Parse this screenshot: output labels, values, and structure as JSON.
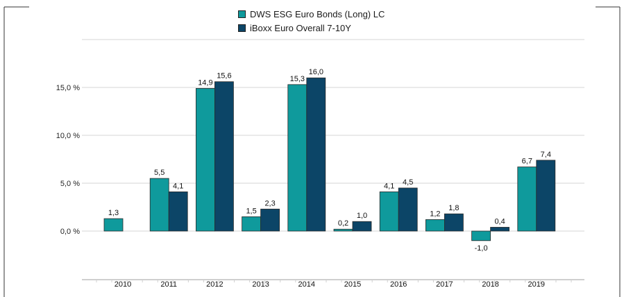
{
  "chart_data": {
    "type": "bar",
    "categories": [
      "2010",
      "2011",
      "2012",
      "2013",
      "2014",
      "2015",
      "2016",
      "2017",
      "2018",
      "2019"
    ],
    "series": [
      {
        "name": "DWS ESG Euro Bonds (Long)  LC",
        "color": "#0f9a9c",
        "values": [
          1.3,
          5.5,
          14.9,
          1.5,
          15.3,
          0.2,
          4.1,
          1.2,
          -1.0,
          6.7
        ],
        "labels": [
          "1,3",
          "5,5",
          "14,9",
          "1,5",
          "15,3",
          "0,2",
          "4,1",
          "1,2",
          "-1,0",
          "6,7"
        ]
      },
      {
        "name": "iBoxx Euro Overall 7-10Y",
        "color": "#0c4567",
        "values": [
          null,
          4.1,
          15.6,
          2.3,
          16.0,
          1.0,
          4.5,
          1.8,
          0.4,
          7.4
        ],
        "labels": [
          "",
          "4,1",
          "15,6",
          "2,3",
          "16,0",
          "1,0",
          "4,5",
          "1,8",
          "0,4",
          "7,4"
        ]
      }
    ],
    "yticks": [
      0,
      5,
      10,
      15
    ],
    "ytick_labels": [
      "0,0 %",
      "5,0 %",
      "10,0 %",
      "15,0 %"
    ],
    "ylim": [
      -2,
      20
    ],
    "grid": true,
    "legend_position": "top-center"
  }
}
